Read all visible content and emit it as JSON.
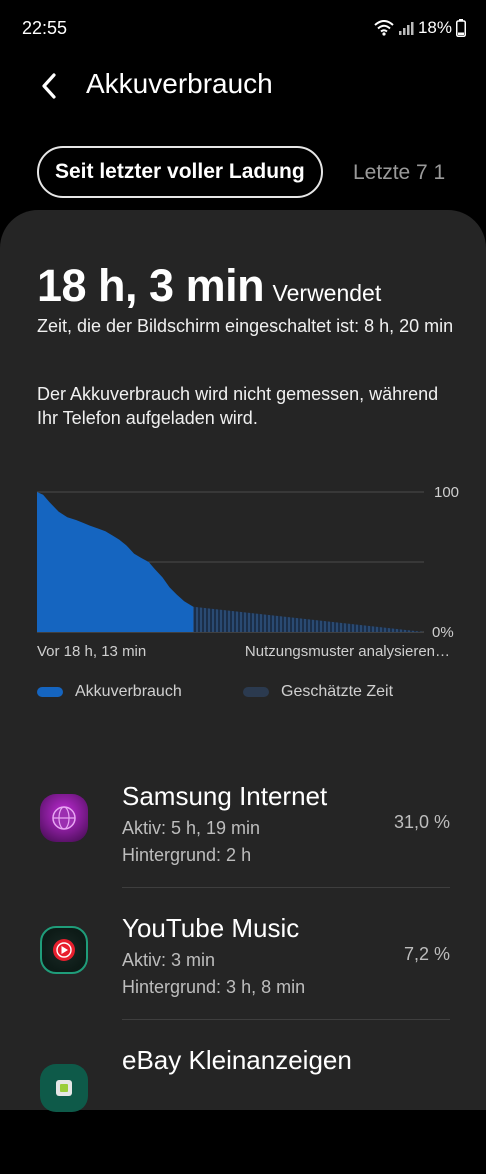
{
  "status_bar": {
    "time": "22:55",
    "battery": "18%"
  },
  "app_bar": {
    "title": "Akkuverbrauch"
  },
  "tabs": [
    {
      "label": "Seit letzter voller Ladung",
      "selected": true
    },
    {
      "label": "Letzte 7 1",
      "selected": false
    }
  ],
  "summary": {
    "usage_time": "18 h, 3 min",
    "usage_suffix": "Verwendet",
    "screen_on_text": "Zeit, die der Bildschirm eingeschaltet ist: 8 h, 20 min",
    "charging_note": "Der Akkuverbrauch wird nicht gemessen, während Ihr Telefon aufgeladen wird."
  },
  "chart_data": {
    "type": "area",
    "y_ticks": [
      "100",
      "0%"
    ],
    "ylim": [
      0,
      100
    ],
    "x_start_label": "Vor 18 h, 13 min",
    "x_end_label": "Nutzungsmuster analysieren…",
    "measured_series": {
      "name": "Akkuverbrauch",
      "color": "#1565c0",
      "x_hours": [
        0,
        0.7,
        1.4,
        2.5,
        3.5,
        4.5,
        5.3,
        6.1,
        7.0,
        7.9,
        8.7,
        9.5,
        10.3,
        11.2,
        12.0,
        12.9,
        13.6,
        14.5,
        15.3,
        16.1,
        17.0,
        18.05
      ],
      "values": [
        100,
        98,
        93,
        86,
        82,
        80,
        78,
        76,
        74,
        72,
        69,
        66,
        62,
        56,
        53,
        50,
        45,
        39,
        32,
        27,
        22,
        18
      ]
    },
    "estimated_series": {
      "name": "Geschätzte Zeit",
      "color": "#1e3a5f",
      "x_hours": [
        18.05,
        44.7
      ],
      "values": [
        18,
        0
      ]
    }
  },
  "legend": [
    {
      "label": "Akkuverbrauch",
      "color": "#1565c0"
    },
    {
      "label": "Geschätzte Zeit",
      "color": "#2b3a4f"
    }
  ],
  "apps": [
    {
      "name": "Samsung Internet",
      "active": "Aktiv: 5 h, 19 min",
      "background": "Hintergrund: 2 h",
      "percent": "31,0 %",
      "icon": "samsung-internet-icon"
    },
    {
      "name": "YouTube Music",
      "active": "Aktiv: 3 min",
      "background": "Hintergrund: 3 h, 8 min",
      "percent": "7,2 %",
      "icon": "youtube-music-icon"
    },
    {
      "name": "eBay Kleinanzeigen",
      "icon": "ebay-kleinanzeigen-icon"
    }
  ]
}
